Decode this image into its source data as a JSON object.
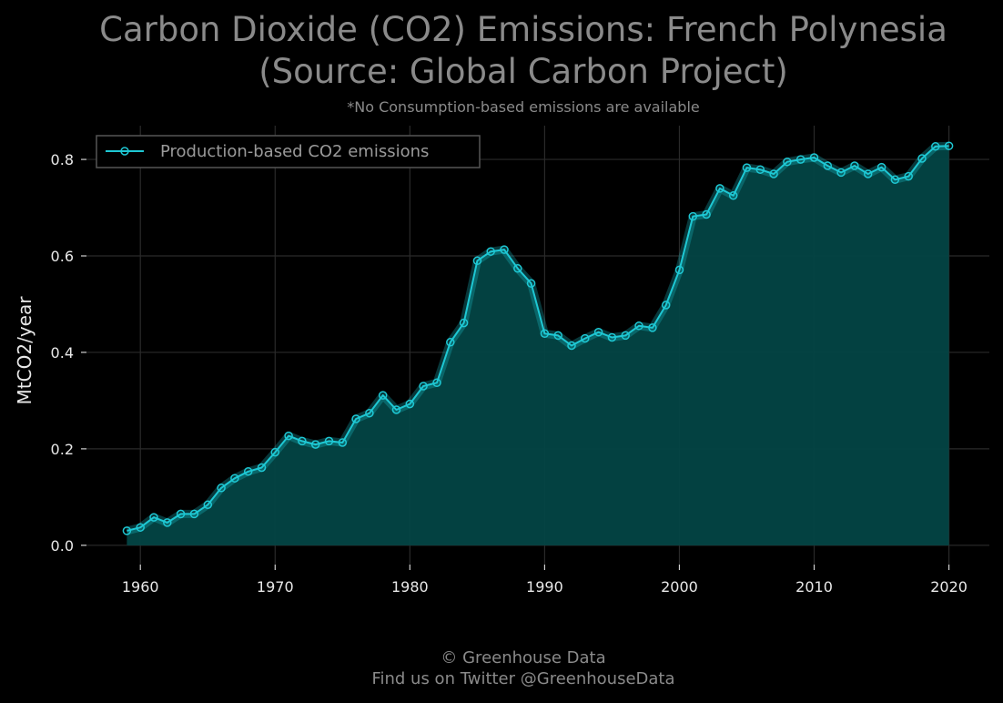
{
  "chart_data": {
    "type": "area",
    "title_line1": "Carbon Dioxide (CO2) Emissions: French Polynesia",
    "title_line2": "(Source: Global Carbon Project)",
    "subtitle": "*No Consumption-based emissions are available",
    "ylabel": "MtCO2/year",
    "xlabel": "",
    "xlim": [
      1956,
      2023
    ],
    "ylim": [
      -0.04,
      0.87
    ],
    "xticks": [
      1960,
      1970,
      1980,
      1990,
      2000,
      2010,
      2020
    ],
    "yticks": [
      0.0,
      0.2,
      0.4,
      0.6,
      0.8
    ],
    "grid": true,
    "legend_position": "top-left",
    "series": [
      {
        "name": "Production-based CO2 emissions",
        "color": "#1ec8d4",
        "x": [
          1959,
          1960,
          1961,
          1962,
          1963,
          1964,
          1965,
          1966,
          1967,
          1968,
          1969,
          1970,
          1971,
          1972,
          1973,
          1974,
          1975,
          1976,
          1977,
          1978,
          1979,
          1980,
          1981,
          1982,
          1983,
          1984,
          1985,
          1986,
          1987,
          1988,
          1989,
          1990,
          1991,
          1992,
          1993,
          1994,
          1995,
          1996,
          1997,
          1998,
          1999,
          2000,
          2001,
          2002,
          2003,
          2004,
          2005,
          2006,
          2007,
          2008,
          2009,
          2010,
          2011,
          2012,
          2013,
          2014,
          2015,
          2016,
          2017,
          2018,
          2019,
          2020
        ],
        "values": [
          0.03,
          0.037,
          0.058,
          0.047,
          0.065,
          0.065,
          0.084,
          0.119,
          0.139,
          0.153,
          0.161,
          0.193,
          0.227,
          0.216,
          0.209,
          0.216,
          0.213,
          0.262,
          0.274,
          0.311,
          0.281,
          0.293,
          0.33,
          0.337,
          0.421,
          0.461,
          0.59,
          0.609,
          0.613,
          0.574,
          0.543,
          0.439,
          0.435,
          0.414,
          0.429,
          0.442,
          0.431,
          0.435,
          0.455,
          0.451,
          0.498,
          0.571,
          0.682,
          0.686,
          0.74,
          0.725,
          0.783,
          0.779,
          0.77,
          0.795,
          0.8,
          0.804,
          0.787,
          0.773,
          0.787,
          0.77,
          0.784,
          0.758,
          0.765,
          0.802,
          0.827,
          0.828
        ]
      }
    ]
  },
  "footer": {
    "line1": "© Greenhouse Data",
    "line2": "Find us on Twitter @GreenhouseData"
  },
  "colors": {
    "background": "#000000",
    "grid": "#2a2a2a",
    "fill": "#034444",
    "line": "#1ec8d4"
  }
}
